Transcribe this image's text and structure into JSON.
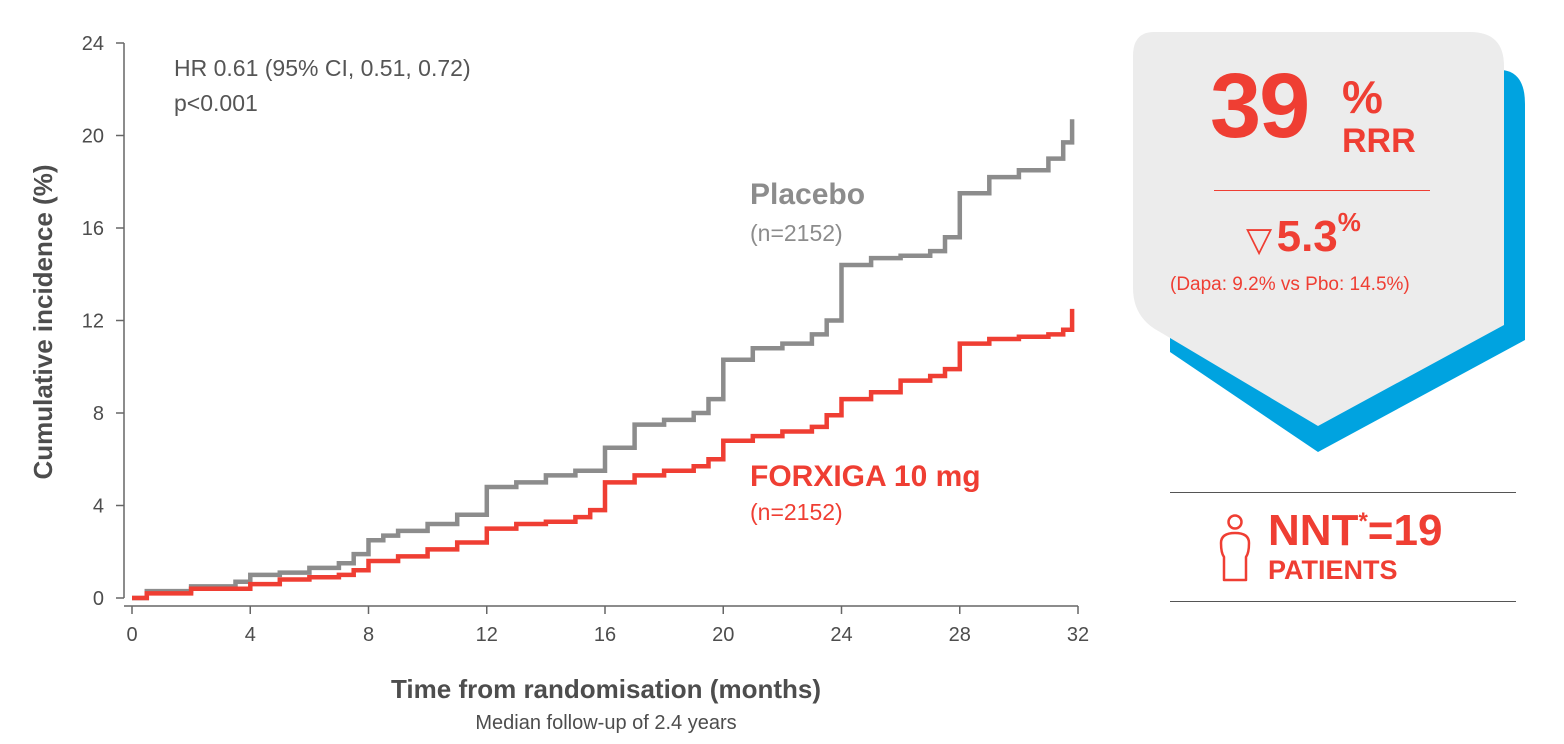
{
  "chart_data": {
    "type": "line",
    "ylabel": "Cumulative incidence (%)",
    "xlabel": "Time from randomisation (months)",
    "x_subtitle": "Median follow-up of 2.4 years",
    "xlim": [
      0,
      32
    ],
    "ylim": [
      0,
      24
    ],
    "x_ticks": [
      0,
      4,
      8,
      12,
      16,
      20,
      24,
      28,
      32
    ],
    "y_ticks": [
      0,
      4,
      8,
      12,
      16,
      20,
      24
    ],
    "x_tick_labels": [
      "0",
      "4",
      "8",
      "12",
      "16",
      "20",
      "24",
      "28",
      "32"
    ],
    "y_tick_labels": [
      "0",
      "4",
      "8",
      "12",
      "16",
      "20",
      "24"
    ],
    "grid": false,
    "annotations": [
      "HR 0.61 (95% CI, 0.51, 0.72)",
      "p<0.001"
    ],
    "series": [
      {
        "name": "Placebo",
        "n_label": "(n=2152)",
        "color": "#8c8c8c",
        "x": [
          0,
          0.5,
          2,
          3.5,
          4,
          5,
          6,
          7,
          7.5,
          8,
          8.5,
          9,
          10,
          11,
          12,
          13,
          14,
          15,
          16,
          17,
          18,
          19,
          19.5,
          20,
          21,
          22,
          23,
          23.5,
          24,
          25,
          26,
          27,
          27.5,
          28,
          29,
          30,
          31,
          31.5,
          31.8
        ],
        "y": [
          0,
          0.3,
          0.5,
          0.7,
          1.0,
          1.1,
          1.3,
          1.5,
          1.9,
          2.5,
          2.7,
          2.9,
          3.2,
          3.6,
          4.8,
          5.0,
          5.3,
          5.5,
          6.5,
          7.5,
          7.7,
          8.0,
          8.6,
          10.3,
          10.8,
          11.0,
          11.4,
          12.0,
          14.4,
          14.7,
          14.8,
          15.0,
          15.6,
          17.5,
          18.2,
          18.5,
          19.0,
          19.7,
          20.7
        ]
      },
      {
        "name": "FORXIGA 10 mg",
        "n_label": "(n=2152)",
        "color": "#ef3e33",
        "x": [
          0,
          0.5,
          2,
          4,
          5,
          6,
          7,
          7.5,
          8,
          9,
          10,
          11,
          12,
          13,
          14,
          15,
          15.5,
          16,
          17,
          18,
          19,
          19.5,
          20,
          21,
          22,
          23,
          23.5,
          24,
          25,
          26,
          27,
          27.5,
          28,
          29,
          30,
          31,
          31.5,
          31.8
        ],
        "y": [
          0,
          0.2,
          0.4,
          0.6,
          0.8,
          0.9,
          1.0,
          1.2,
          1.6,
          1.8,
          2.1,
          2.4,
          3.0,
          3.2,
          3.3,
          3.5,
          3.8,
          5.0,
          5.3,
          5.5,
          5.7,
          6.0,
          6.8,
          7.0,
          7.2,
          7.4,
          7.9,
          8.6,
          8.9,
          9.4,
          9.6,
          9.9,
          11.0,
          11.2,
          11.3,
          11.4,
          11.6,
          12.5
        ]
      }
    ]
  },
  "rrr_panel": {
    "value": "39",
    "unit": "%",
    "label": "RRR",
    "arr_symbol": "▽",
    "arr_value": "5.3",
    "arr_unit": "%",
    "arr_detail": "(Dapa: 9.2% vs Pbo: 14.5%)",
    "card_color": "#ececec",
    "shadow_color": "#00a3e0"
  },
  "nnt_box": {
    "icon": "person-icon",
    "value_prefix": "NNT",
    "value_sup": "*",
    "value_suffix": "=19",
    "unit": "PATIENTS"
  }
}
